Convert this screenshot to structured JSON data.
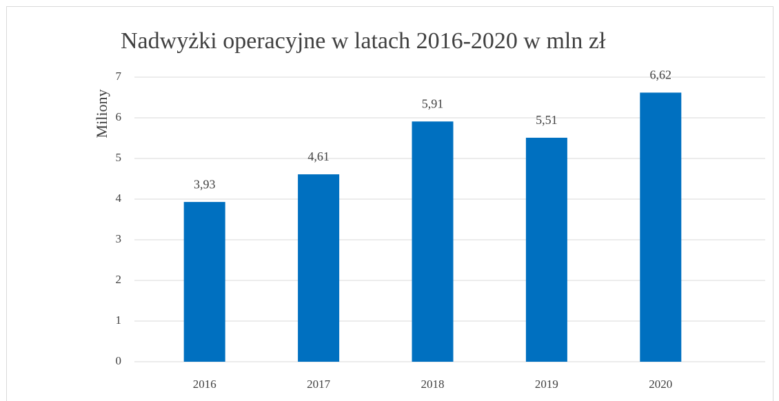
{
  "chart_data": {
    "type": "bar",
    "title": "Nadwyżki operacyjne w latach 2016-2020 w mln zł",
    "y_label": "Miliony",
    "categories": [
      "2016",
      "2017",
      "2018",
      "2019",
      "2020"
    ],
    "values": [
      3.93,
      4.61,
      5.91,
      5.51,
      6.62
    ],
    "value_labels": [
      "3,93",
      "4,61",
      "5,91",
      "5,51",
      "6,62"
    ],
    "color": "#0070c0",
    "ylim": [
      0,
      7
    ],
    "yticks": [
      0,
      1,
      2,
      3,
      4,
      5,
      6,
      7
    ],
    "grid": true
  }
}
